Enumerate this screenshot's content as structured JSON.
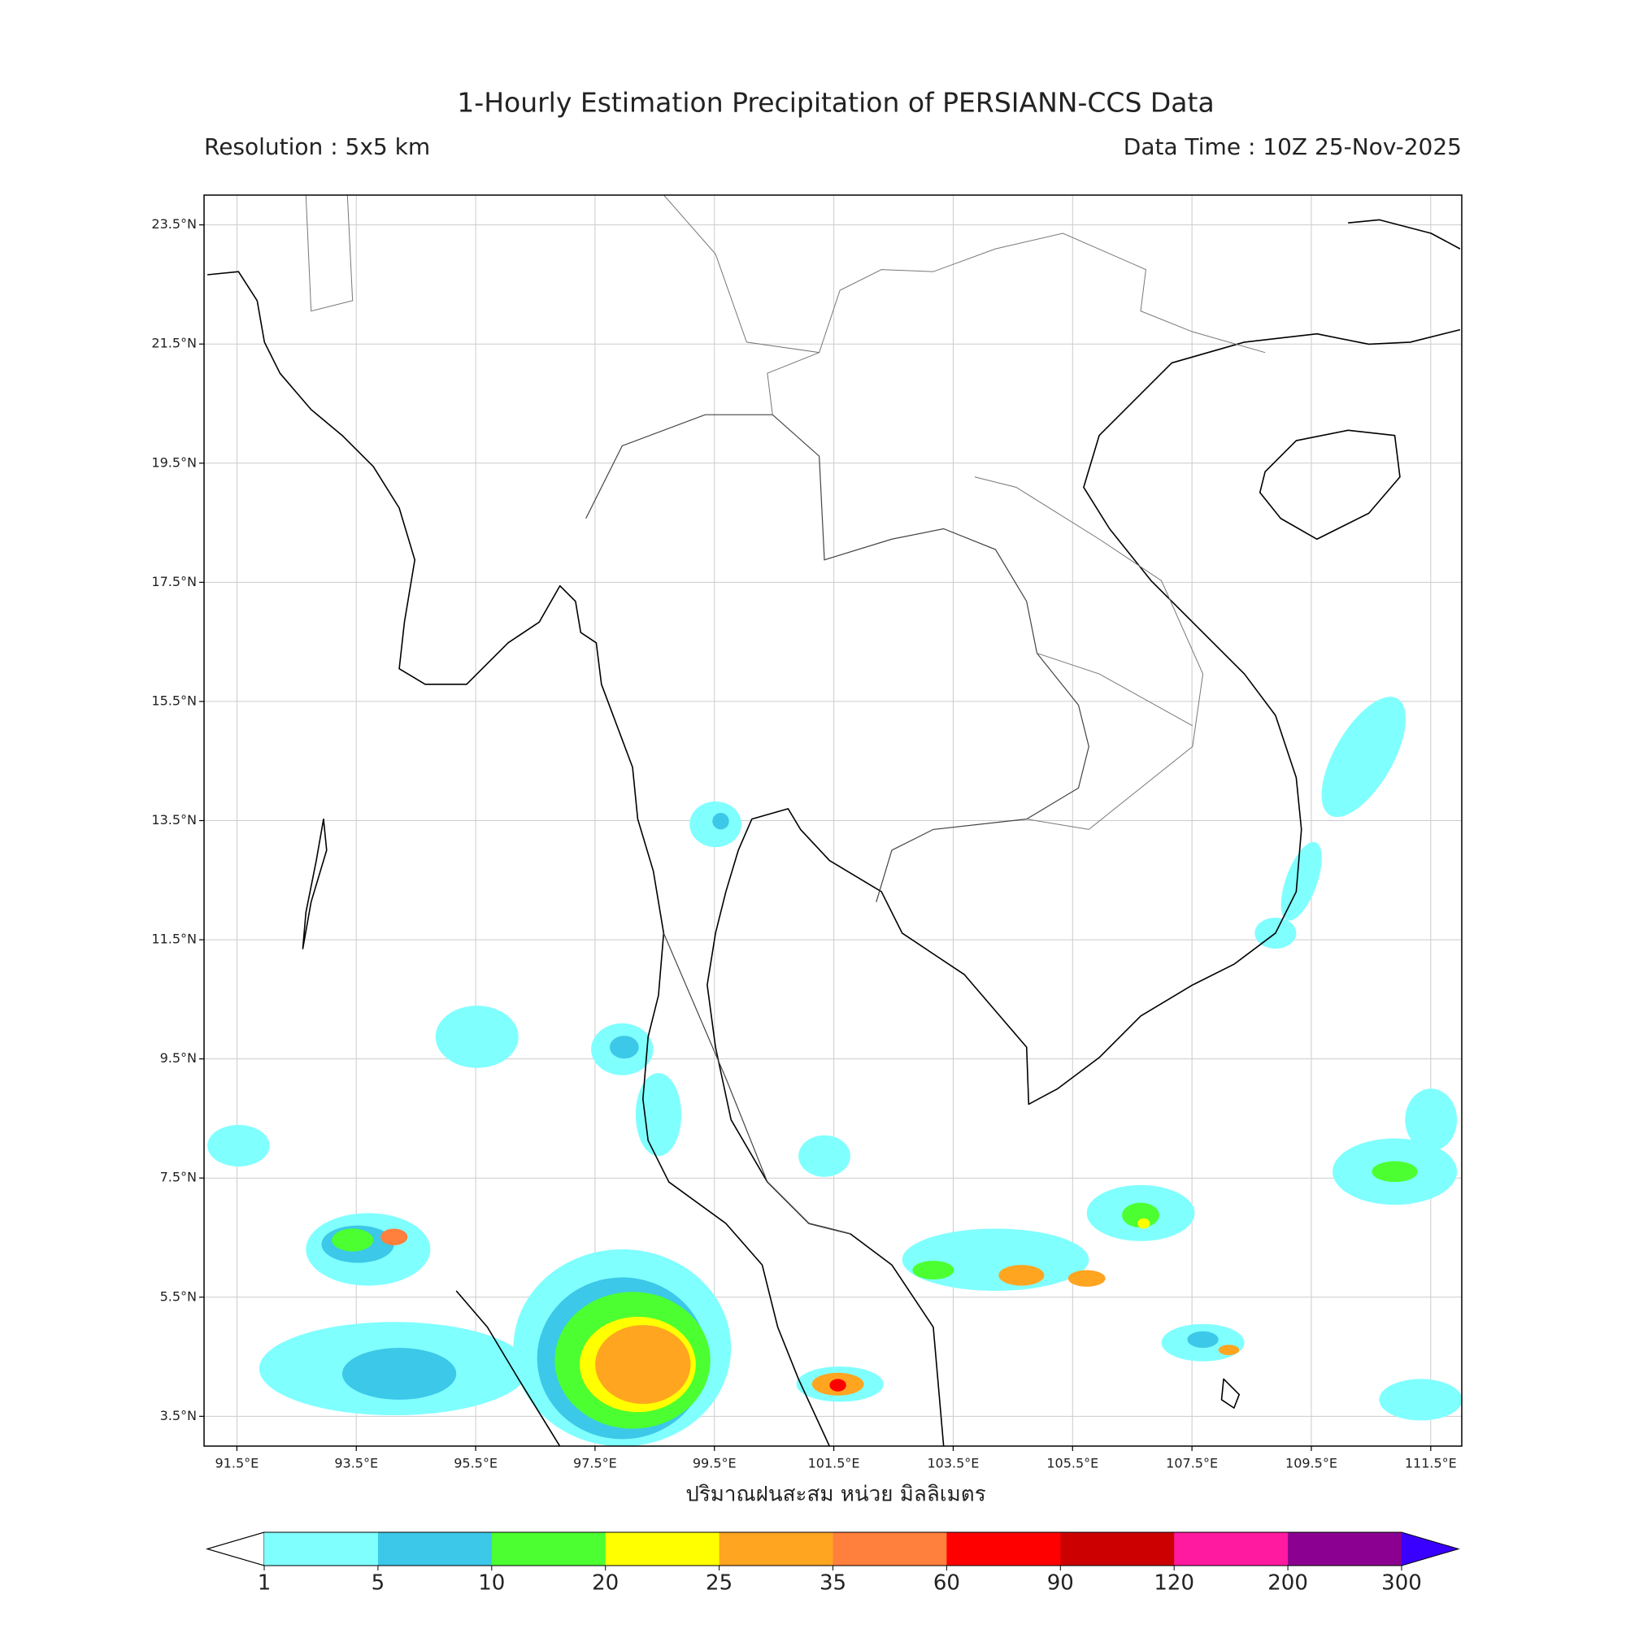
{
  "chart_data": {
    "type": "map",
    "title": "1-Hourly Estimation Precipitation of PERSIANN-CCS Data",
    "subtitle_left": "Resolution : 5x5 km",
    "subtitle_right": "Data Time : 10Z 25-Nov-2025",
    "xlim": [
      90.95,
      112.02
    ],
    "ylim": [
      3.0,
      24.0
    ],
    "xticks": [
      {
        "value": 91.5,
        "label": "91.5°E"
      },
      {
        "value": 93.5,
        "label": "93.5°E"
      },
      {
        "value": 95.5,
        "label": "95.5°E"
      },
      {
        "value": 97.5,
        "label": "97.5°E"
      },
      {
        "value": 99.5,
        "label": "99.5°E"
      },
      {
        "value": 101.5,
        "label": "101.5°E"
      },
      {
        "value": 103.5,
        "label": "103.5°E"
      },
      {
        "value": 105.5,
        "label": "105.5°E"
      },
      {
        "value": 107.5,
        "label": "107.5°E"
      },
      {
        "value": 109.5,
        "label": "109.5°E"
      },
      {
        "value": 111.5,
        "label": "111.5°E"
      }
    ],
    "yticks": [
      {
        "value": 3.5,
        "label": "3.5°N"
      },
      {
        "value": 5.5,
        "label": "5.5°N"
      },
      {
        "value": 7.5,
        "label": "7.5°N"
      },
      {
        "value": 9.5,
        "label": "9.5°N"
      },
      {
        "value": 11.5,
        "label": "11.5°N"
      },
      {
        "value": 13.5,
        "label": "13.5°N"
      },
      {
        "value": 15.5,
        "label": "15.5°N"
      },
      {
        "value": 17.5,
        "label": "17.5°N"
      },
      {
        "value": 19.5,
        "label": "19.5°N"
      },
      {
        "value": 21.5,
        "label": "21.5°N"
      },
      {
        "value": 23.5,
        "label": "23.5°N"
      }
    ],
    "grid": true,
    "colorbar_label": "ปริมาณฝนสะสม หน่วย มิลลิเมตร",
    "levels": [
      1,
      5,
      10,
      20,
      25,
      35,
      60,
      90,
      120,
      200,
      300
    ],
    "colors": [
      "#80ffff",
      "#3cc8e8",
      "#4cff30",
      "#ffff00",
      "#ffa520",
      "#ff7f3c",
      "#ff0000",
      "#cc0000",
      "#ff1aa0",
      "#8b0090"
    ],
    "under_color": "#ffffff",
    "over_color": "#3a00ff"
  }
}
